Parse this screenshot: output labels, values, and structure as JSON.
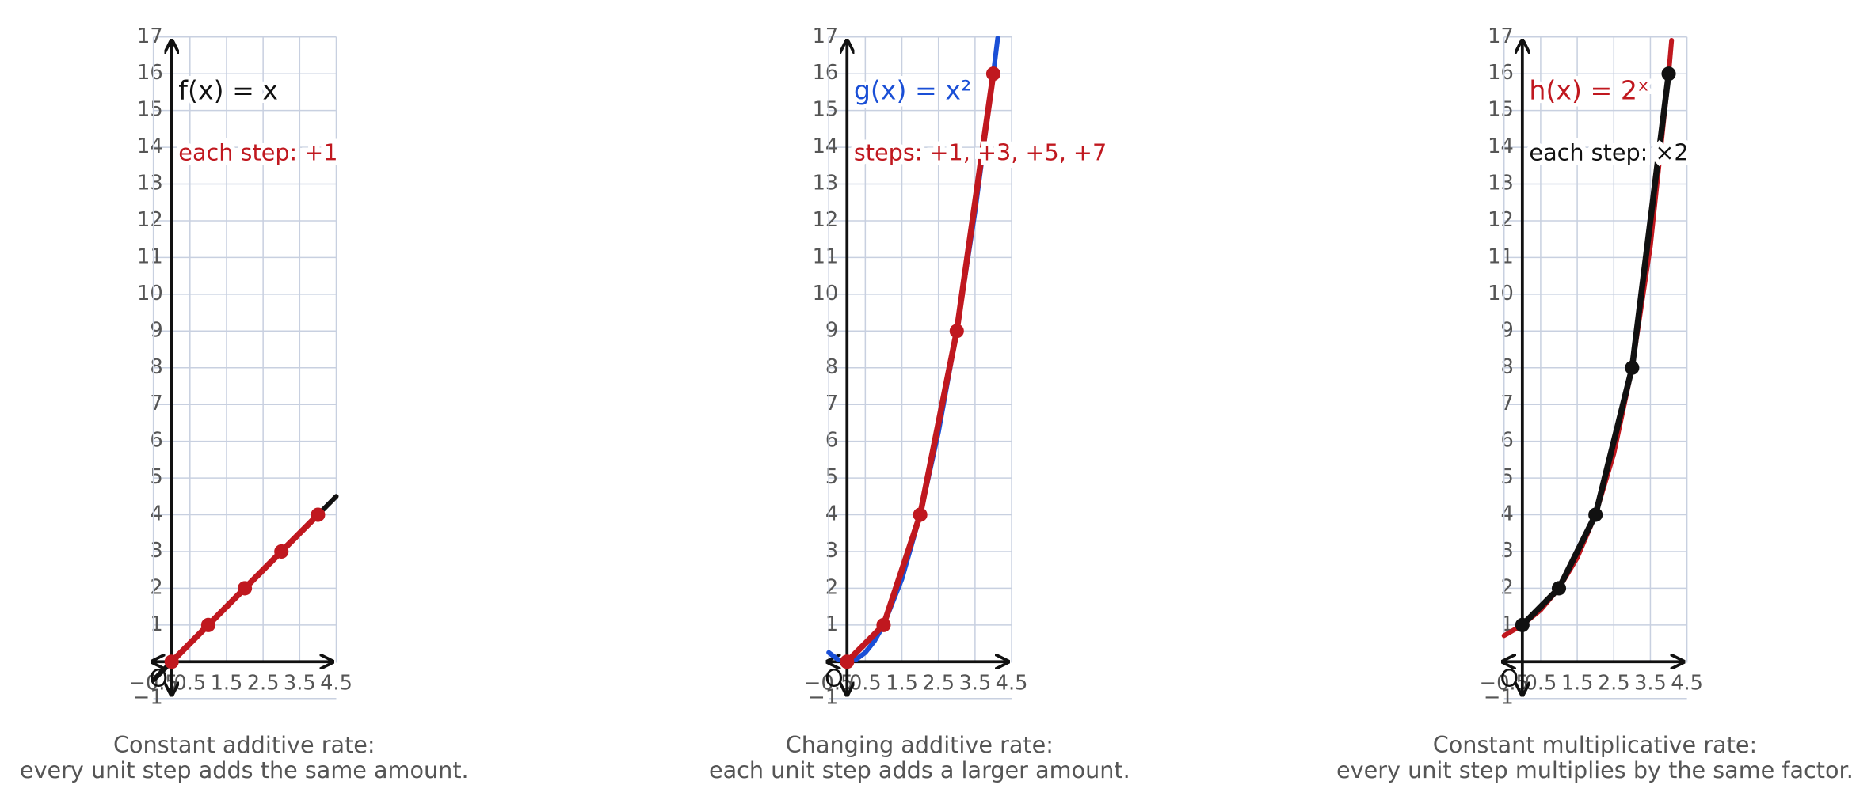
{
  "chart_data": [
    {
      "type": "line",
      "label": "f(x) = x",
      "label_color": "#111111",
      "annotation": "each step: +1",
      "annotation_color": "#c0181f",
      "caption": [
        "Constant additive rate:",
        "every unit step adds the same amount."
      ],
      "origin_label": "O",
      "xlim": [
        -0.5,
        4.5
      ],
      "ylim": [
        -1,
        17
      ],
      "grid": true,
      "xticks": [
        {
          "value": -0.5,
          "label": "−0.5"
        },
        0.5,
        1.5,
        2.5,
        3.5,
        4.5
      ],
      "yticks": [
        {
          "value": -1,
          "label": "−1"
        },
        1,
        2,
        3,
        4,
        5,
        6,
        7,
        8,
        9,
        10,
        11,
        12,
        13,
        14,
        15,
        16,
        17
      ],
      "series": [
        {
          "color": "#111111",
          "x": [
            -0.5,
            4.5
          ],
          "values": [
            -0.5,
            4.5
          ]
        },
        {
          "color": "#c0181f",
          "markers": true,
          "x": [
            0,
            1,
            2,
            3,
            4
          ],
          "values": [
            0,
            1,
            2,
            3,
            4
          ]
        }
      ]
    },
    {
      "type": "line",
      "label": "g(x) = x²",
      "label_color": "#1a4fd6",
      "annotation": "steps: +1, +3, +5, +7",
      "annotation_color": "#c0181f",
      "caption": [
        "Changing additive rate:",
        "each unit step adds a larger amount."
      ],
      "origin_label": "O",
      "xlim": [
        -0.5,
        4.5
      ],
      "ylim": [
        -1,
        17
      ],
      "grid": true,
      "xticks": [
        {
          "value": -0.5,
          "label": "−0.5"
        },
        0.5,
        1.5,
        2.5,
        3.5,
        4.5
      ],
      "yticks": [
        {
          "value": -1,
          "label": "−1"
        },
        1,
        2,
        3,
        4,
        5,
        6,
        7,
        8,
        9,
        10,
        11,
        12,
        13,
        14,
        15,
        16,
        17
      ],
      "series": [
        {
          "color": "#1a4fd6",
          "x": [
            -0.5,
            -0.25,
            0,
            0.25,
            0.5,
            0.75,
            1,
            1.5,
            2,
            2.5,
            3,
            3.5,
            4,
            4.12
          ],
          "values": [
            0.25,
            0.0625,
            0,
            0.0625,
            0.25,
            0.5625,
            1,
            2.25,
            4,
            6.25,
            9,
            12.25,
            16,
            16.97
          ]
        },
        {
          "color": "#c0181f",
          "markers": true,
          "x": [
            0,
            1,
            2,
            3,
            4
          ],
          "values": [
            0,
            1,
            4,
            9,
            16
          ]
        }
      ]
    },
    {
      "type": "line",
      "label": "h(x) = 2ˣ",
      "label_color": "#c0181f",
      "annotation": "each step: ×2",
      "annotation_color": "#111111",
      "caption": [
        "Constant multiplicative rate:",
        "every unit step multiplies by the same factor."
      ],
      "origin_label": "O",
      "xlim": [
        -0.5,
        4.5
      ],
      "ylim": [
        -1,
        17
      ],
      "grid": true,
      "xticks": [
        {
          "value": -0.5,
          "label": "−0.5"
        },
        0.5,
        1.5,
        2.5,
        3.5,
        4.5
      ],
      "yticks": [
        {
          "value": -1,
          "label": "−1"
        },
        1,
        2,
        3,
        4,
        5,
        6,
        7,
        8,
        9,
        10,
        11,
        12,
        13,
        14,
        15,
        16,
        17
      ],
      "series": [
        {
          "color": "#c0181f",
          "x": [
            -0.5,
            0,
            0.5,
            1,
            1.5,
            2,
            2.5,
            3,
            3.5,
            4,
            4.08
          ],
          "values": [
            0.71,
            1,
            1.41,
            2,
            2.83,
            4,
            5.66,
            8,
            11.31,
            16,
            16.91
          ]
        },
        {
          "color": "#111111",
          "markers": true,
          "x": [
            0,
            1,
            2,
            3,
            4
          ],
          "values": [
            1,
            2,
            4,
            8,
            16
          ]
        }
      ]
    }
  ]
}
